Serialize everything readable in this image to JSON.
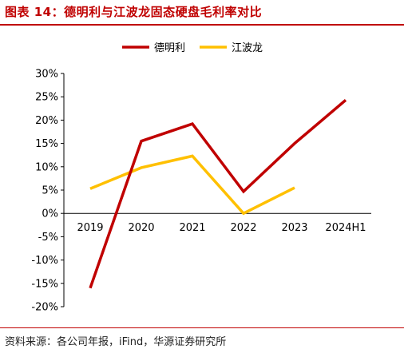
{
  "title": "图表 14：德明利与江波龙固态硬盘毛利率对比",
  "source": "资料来源：各公司年报，iFind，华源证券研究所",
  "chart_data": {
    "type": "line",
    "x": [
      "2019",
      "2020",
      "2021",
      "2022",
      "2023",
      "2024H1"
    ],
    "series": [
      {
        "name": "德明利",
        "color": "#c00000",
        "values": [
          -16,
          15.5,
          19.2,
          4.7,
          15,
          24.3
        ]
      },
      {
        "name": "江波龙",
        "color": "#ffc000",
        "values": [
          5.3,
          9.8,
          12.3,
          0,
          5.5,
          null
        ]
      }
    ],
    "ylim": [
      -20,
      30
    ],
    "yticks": [
      30,
      25,
      20,
      15,
      10,
      5,
      0,
      -5,
      -10,
      -15,
      -20
    ],
    "ytick_labels": [
      "30%",
      "25%",
      "20%",
      "15%",
      "10%",
      "5%",
      "0%",
      "-5%",
      "-10%",
      "-15%",
      "-20%"
    ],
    "legend_position": "top-center",
    "grid": false
  }
}
